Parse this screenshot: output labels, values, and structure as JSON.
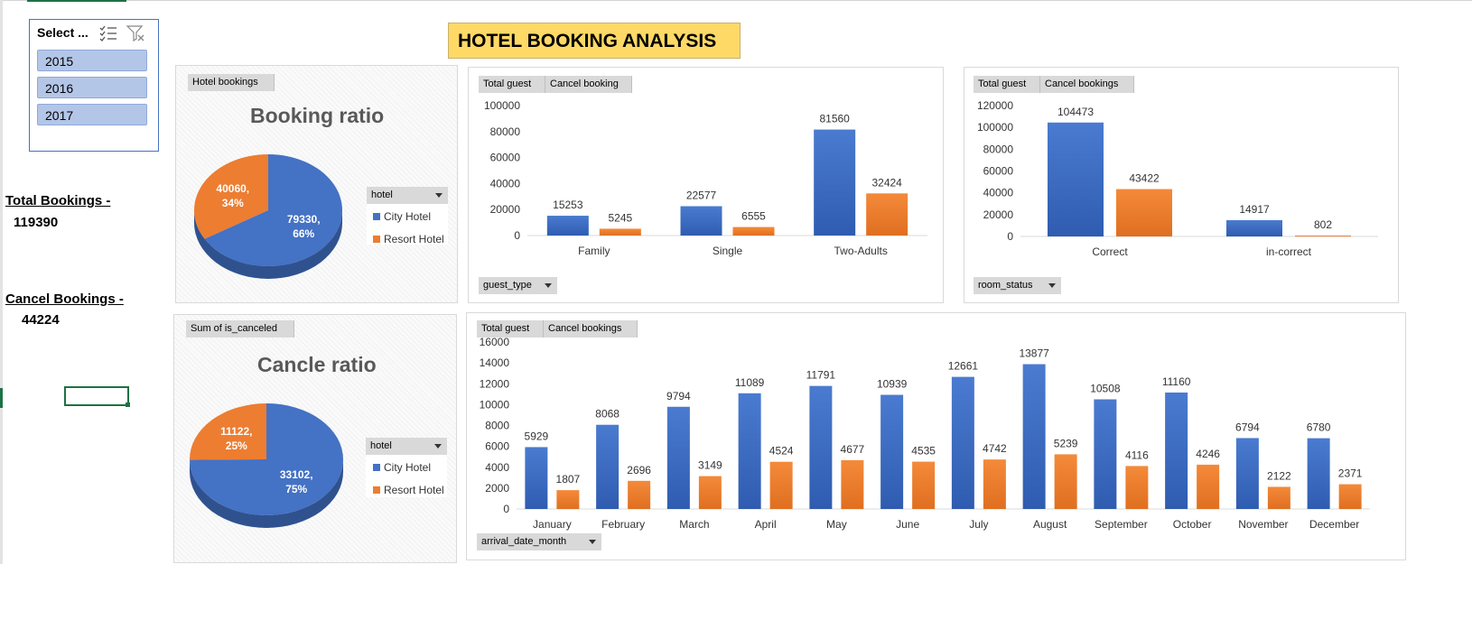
{
  "colors": {
    "city": "#4472c4",
    "resort": "#ed7d31",
    "title_bg": "#ffd966"
  },
  "title": "HOTEL BOOKING ANALYSIS",
  "slicer": {
    "header": "Select ...",
    "items": [
      "2015",
      "2016",
      "2017"
    ],
    "icons": [
      "multi-select-icon",
      "clear-filter-icon"
    ]
  },
  "kpis": {
    "total_label": "Total Bookings -",
    "total_value": "119390",
    "cancel_label": "Cancel Bookings -",
    "cancel_value": "44224"
  },
  "booking_panel": {
    "field_button": "Hotel bookings",
    "title": "Booking ratio",
    "legend_field": "hotel",
    "legend": [
      "City Hotel",
      "Resort Hotel"
    ],
    "slice_labels": {
      "city": [
        "79330,",
        "66%"
      ],
      "resort": [
        "40060,",
        "34%"
      ]
    }
  },
  "cancel_panel": {
    "field_button": "Sum of is_canceled",
    "title": "Cancle ratio",
    "legend_field": "hotel",
    "legend": [
      "City Hotel",
      "Resort Hotel"
    ],
    "slice_labels": {
      "city": [
        "33102,",
        "75%"
      ],
      "resort": [
        "11122,",
        "25%"
      ]
    }
  },
  "guest_panel": {
    "field_buttons": [
      "Total guest",
      "Cancel booking"
    ],
    "axis_field": "guest_type"
  },
  "room_panel": {
    "field_buttons": [
      "Total guest",
      "Cancel bookings"
    ],
    "axis_field": "room_status"
  },
  "month_panel": {
    "field_buttons": [
      "Total guest",
      "Cancel bookings"
    ],
    "axis_field": "arrival_date_month"
  },
  "chart_data": [
    {
      "type": "pie",
      "title": "Booking ratio",
      "categories": [
        "City Hotel",
        "Resort Hotel"
      ],
      "values": [
        79330,
        40060
      ],
      "percent": [
        66,
        34
      ]
    },
    {
      "type": "pie",
      "title": "Cancle ratio",
      "categories": [
        "City Hotel",
        "Resort Hotel"
      ],
      "values": [
        33102,
        11122
      ],
      "percent": [
        75,
        25
      ]
    },
    {
      "type": "bar",
      "xlabel": "guest_type",
      "categories": [
        "Family",
        "Single",
        "Two-Adults"
      ],
      "series": [
        {
          "name": "Total guest",
          "values": [
            15253,
            22577,
            81560
          ]
        },
        {
          "name": "Cancel booking",
          "values": [
            5245,
            6555,
            32424
          ]
        }
      ],
      "ylim": [
        0,
        100000
      ],
      "yticks": [
        0,
        20000,
        40000,
        60000,
        80000,
        100000
      ]
    },
    {
      "type": "bar",
      "xlabel": "room_status",
      "categories": [
        "Correct",
        "in-correct"
      ],
      "series": [
        {
          "name": "Total guest",
          "values": [
            104473,
            14917
          ]
        },
        {
          "name": "Cancel bookings",
          "values": [
            43422,
            802
          ]
        }
      ],
      "ylim": [
        0,
        120000
      ],
      "yticks": [
        0,
        20000,
        40000,
        60000,
        80000,
        100000,
        120000
      ]
    },
    {
      "type": "bar",
      "xlabel": "arrival_date_month",
      "categories": [
        "January",
        "February",
        "March",
        "April",
        "May",
        "June",
        "July",
        "August",
        "September",
        "October",
        "November",
        "December"
      ],
      "series": [
        {
          "name": "Total guest",
          "values": [
            5929,
            8068,
            9794,
            11089,
            11791,
            10939,
            12661,
            13877,
            10508,
            11160,
            6794,
            6780
          ]
        },
        {
          "name": "Cancel bookings",
          "values": [
            1807,
            2696,
            3149,
            4524,
            4677,
            4535,
            4742,
            5239,
            4116,
            4246,
            2122,
            2371
          ]
        }
      ],
      "ylim": [
        0,
        16000
      ],
      "yticks": [
        0,
        2000,
        4000,
        6000,
        8000,
        10000,
        12000,
        14000,
        16000
      ]
    }
  ]
}
